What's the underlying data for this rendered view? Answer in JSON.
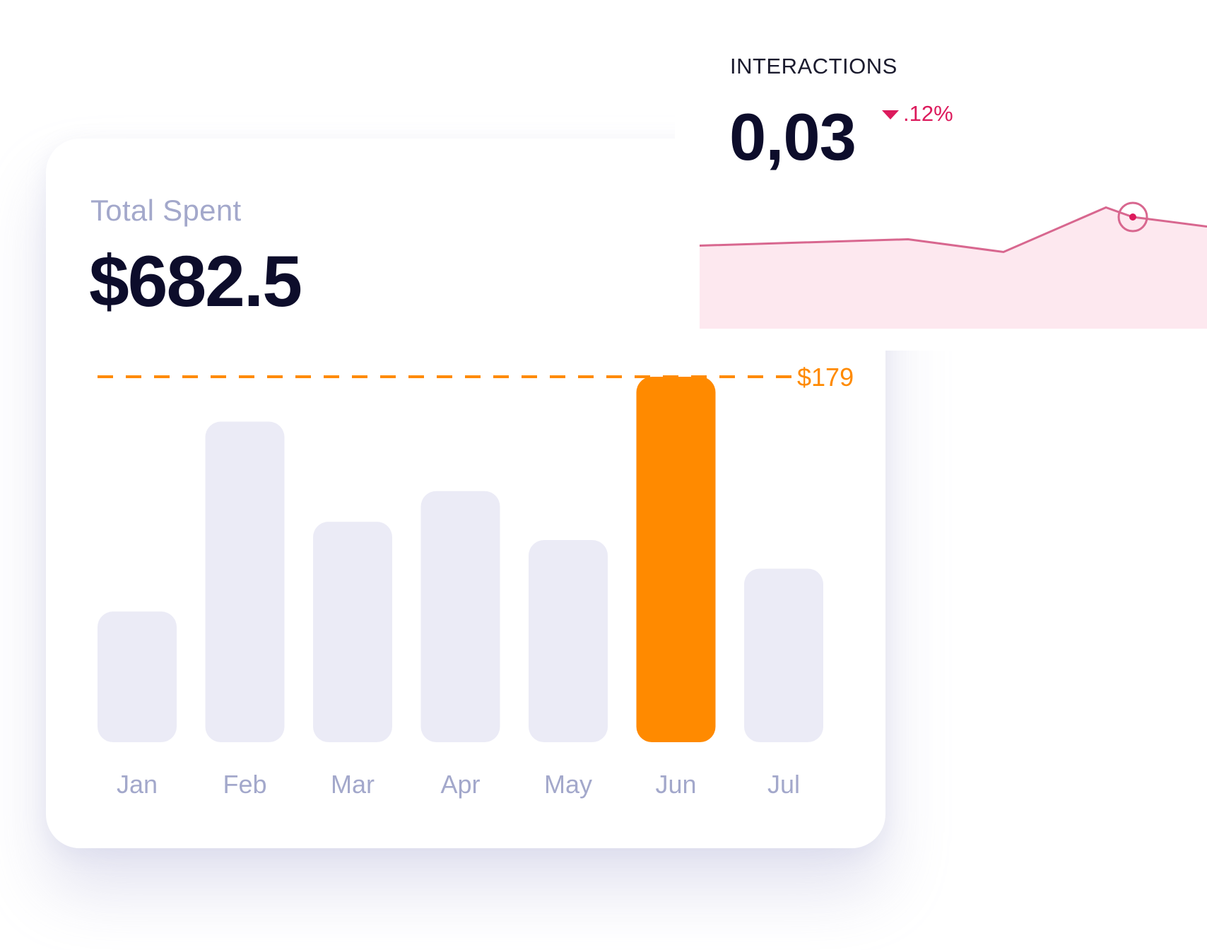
{
  "total_spent": {
    "label": "Total Spent",
    "value": "$682.5"
  },
  "interactions": {
    "label": "INTERACTIONS",
    "value": "0,03",
    "delta": ".12%",
    "delta_direction": "down",
    "delta_color": "#dc1a5c"
  },
  "chart_data": [
    {
      "type": "bar",
      "categories": [
        "Jan",
        "Feb",
        "Mar",
        "Apr",
        "May",
        "Jun",
        "Jul"
      ],
      "values": [
        64,
        157,
        108,
        123,
        99,
        179,
        85
      ],
      "highlight_index": 5,
      "highlight_color": "#ff8a00",
      "bar_color": "#ebebf6",
      "reference_line": {
        "value": 179,
        "label": "$179",
        "color": "#ff8a00",
        "style": "dashed"
      },
      "ylim": [
        0,
        179
      ],
      "grid": false
    },
    {
      "type": "area",
      "values": [
        5,
        7,
        3,
        17,
        14,
        11
      ],
      "ylim": [
        0,
        20
      ],
      "marker_index": 4,
      "line_color": "#d8678f",
      "fill_color": "#fde8ef",
      "grid": false
    }
  ]
}
